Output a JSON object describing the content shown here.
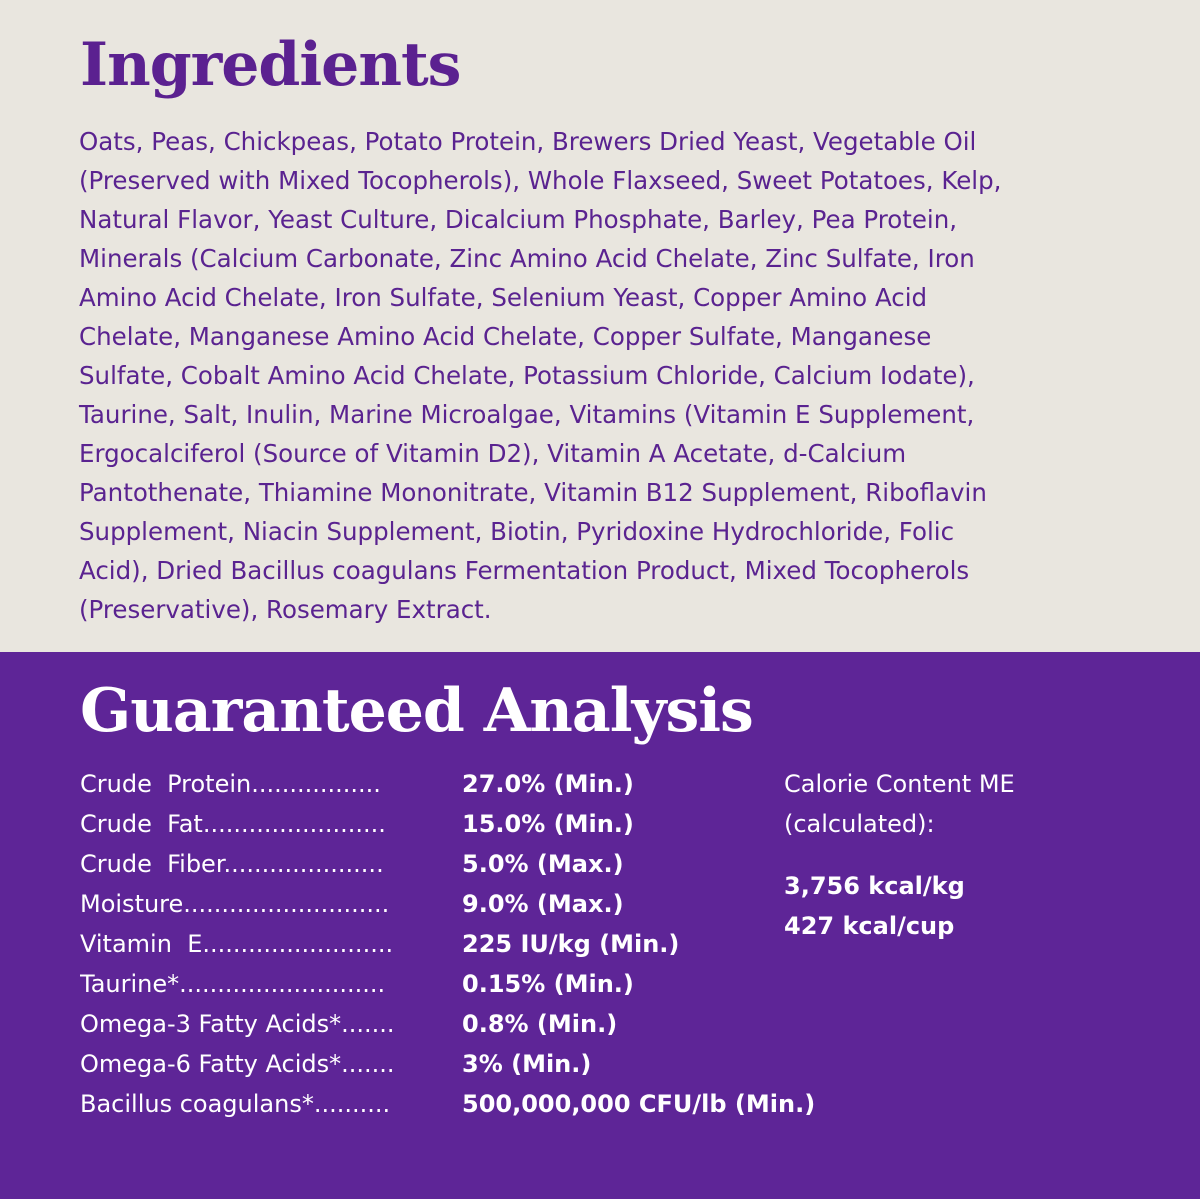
{
  "colors": {
    "top_bg": "#e9e6df",
    "bottom_bg": "#5e2597",
    "text_purple": "#5a2390",
    "white": "#ffffff"
  },
  "ingredients": {
    "title": "Ingredients",
    "lines": [
      "Oats, Peas, Chickpeas, Potato Protein, Brewers Dried Yeast, Vegetable Oil",
      "(Preserved with Mixed Tocopherols), Whole Flaxseed, Sweet Potatoes, Kelp,",
      "Natural Flavor, Yeast Culture, Dicalcium Phosphate, Barley, Pea Protein,",
      "Minerals (Calcium Carbonate, Zinc Amino Acid Chelate, Zinc Sulfate, Iron",
      "Amino Acid Chelate, Iron Sulfate, Selenium Yeast, Copper Amino Acid",
      "Chelate, Manganese Amino Acid Chelate, Copper Sulfate, Manganese",
      "Sulfate, Cobalt Amino Acid Chelate, Potassium Chloride, Calcium Iodate),",
      "Taurine, Salt, Inulin, Marine Microalgae, Vitamins (Vitamin E Supplement,",
      "Ergocalciferol (Source of Vitamin D2), Vitamin A Acetate, d-Calcium",
      "Pantothenate, Thiamine Mononitrate, Vitamin B12 Supplement, Riboflavin",
      "Supplement, Niacin Supplement, Biotin, Pyridoxine Hydrochloride, Folic",
      "Acid), Dried Bacillus coagulans Fermentation Product, Mixed Tocopherols",
      "(Preservative), Rosemary Extract."
    ]
  },
  "analysis": {
    "title": "Guaranteed Analysis",
    "rows": [
      {
        "label": "Crude  Protein.................",
        "value": "27.0% (Min.)"
      },
      {
        "label": "Crude  Fat........................",
        "value": "15.0% (Min.)"
      },
      {
        "label": "Crude  Fiber.....................",
        "value": "5.0% (Max.)"
      },
      {
        "label": "Moisture...........................",
        "value": "9.0% (Max.)"
      },
      {
        "label": "Vitamin  E.........................",
        "value": "225 IU/kg (Min.)"
      },
      {
        "label": "Taurine*...........................",
        "value": "0.15% (Min.)"
      },
      {
        "label": "Omega-3 Fatty Acids*.......",
        "value": "0.8% (Min.)"
      },
      {
        "label": "Omega-6 Fatty Acids*.......",
        "value": "3% (Min.)"
      },
      {
        "label": "Bacillus coagulans*..........",
        "value": "500,000,000 CFU/lb (Min.)"
      }
    ],
    "calorie": {
      "label_1": "Calorie Content ME",
      "label_2": "(calculated):",
      "per_kg": "3,756 kcal/kg",
      "per_cup": "427 kcal/cup"
    }
  }
}
